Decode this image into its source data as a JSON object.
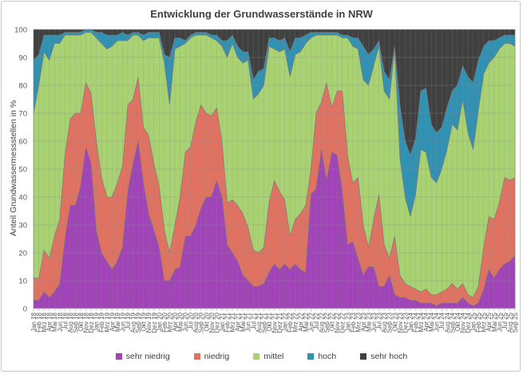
{
  "chart_data": {
    "type": "area",
    "stacked": true,
    "title": "Entwicklung der Grundwasserstände in NRW",
    "xlabel": "",
    "ylabel": "Anteil Grundwassermessstellen in %",
    "ylim": [
      0,
      100
    ],
    "yticks": [
      0,
      10,
      20,
      30,
      40,
      50,
      60,
      70,
      80,
      90,
      100
    ],
    "grid": true,
    "legend_position": "bottom",
    "categories": [
      "Jan 18",
      "Feb 18",
      "Mrz 18",
      "Apr 18",
      "Mai 18",
      "Jun 18",
      "Jul 18",
      "Aug 18",
      "Sep 18",
      "Okt 18",
      "Nov 18",
      "Dez 18",
      "Jan 19",
      "Feb 19",
      "Mrz 19",
      "Apr 19",
      "Mai 19",
      "Jun 19",
      "Jul 19",
      "Aug 19",
      "Sep 19",
      "Okt 19",
      "Nov 19",
      "Dez 19",
      "Jan 20",
      "Feb 20",
      "Mrz 20",
      "Apr 20",
      "Mai 20",
      "Jun 20",
      "Jul 20",
      "Aug 20",
      "Sep 20",
      "Okt 20",
      "Nov 20",
      "Dez 20",
      "Jan 21",
      "Feb 21",
      "Mrz 21",
      "Apr 21",
      "Mai 21",
      "Jun 21",
      "Jul 21",
      "Aug 21",
      "Sep 21",
      "Okt 21",
      "Nov 21",
      "Dez 21",
      "Jan 22",
      "Feb 22",
      "Mrz 22",
      "Apr 22",
      "Mai 22",
      "Jun 22",
      "Jul 22",
      "Aug 22",
      "Sep 22",
      "Okt 22",
      "Nov 22",
      "Dez 22",
      "Jan 23",
      "Feb 23",
      "Mrz 23",
      "Apr 23",
      "Mai 23",
      "Jun 23",
      "Jul 23",
      "Aug 23",
      "Sep 23",
      "Okt 23",
      "Nov 23",
      "Dez 23",
      "Jan 24",
      "Feb 24",
      "Mrz 24",
      "Apr 24",
      "Mai 24",
      "Jun 24",
      "Jul 24",
      "Aug 24",
      "Sep 24",
      "Okt 24",
      "Nov 24",
      "Dez 24",
      "Jan 25",
      "Feb 25",
      "Mrz 25",
      "Apr 25",
      "Mai 25",
      "Jun 25",
      "Jul 25",
      "Aug 25",
      "Sep 25"
    ],
    "series": [
      {
        "name": "sehr niedrig",
        "color": "#a044b8",
        "values": [
          3,
          3,
          6,
          4,
          6,
          9,
          25,
          37,
          37,
          44,
          58,
          52,
          28,
          20,
          17,
          14,
          17,
          22,
          42,
          52,
          60,
          45,
          34,
          28,
          22,
          10,
          10,
          14,
          15,
          26,
          26,
          30,
          36,
          40,
          40,
          46,
          40,
          23,
          20,
          17,
          12,
          10,
          8,
          8,
          9,
          13,
          16,
          14,
          16,
          14,
          16,
          14,
          13,
          41,
          43,
          57,
          46,
          56,
          55,
          42,
          23,
          24,
          18,
          12,
          15,
          15,
          8,
          8,
          12,
          5,
          4,
          4,
          3,
          3,
          2,
          2,
          2,
          1,
          2,
          2,
          2,
          2,
          4,
          2,
          1,
          2,
          7,
          14,
          11,
          14,
          16,
          17,
          19
        ]
      },
      {
        "name": "niedrig",
        "color": "#e07262",
        "values": [
          8,
          8,
          15,
          14,
          20,
          23,
          30,
          31,
          33,
          26,
          23,
          25,
          32,
          27,
          23,
          26,
          28,
          29,
          31,
          23,
          23,
          20,
          28,
          24,
          22,
          18,
          10,
          16,
          25,
          30,
          32,
          37,
          37,
          30,
          29,
          26,
          20,
          15,
          19,
          20,
          22,
          19,
          13,
          12,
          13,
          25,
          30,
          28,
          23,
          12,
          16,
          20,
          24,
          9,
          27,
          17,
          35,
          16,
          23,
          36,
          32,
          21,
          29,
          18,
          7,
          17,
          33,
          15,
          6,
          21,
          8,
          5,
          5,
          4,
          4,
          5,
          3,
          4,
          4,
          5,
          7,
          5,
          5,
          3,
          3,
          6,
          15,
          19,
          21,
          24,
          31,
          29,
          28
        ]
      },
      {
        "name": "mittel",
        "color": "#a9d372",
        "values": [
          59,
          69,
          71,
          71,
          69,
          63,
          43,
          30,
          28,
          28,
          18,
          22,
          37,
          48,
          53,
          54,
          51,
          45,
          23,
          23,
          15,
          31,
          35,
          45,
          53,
          60,
          53,
          63,
          54,
          39,
          39,
          31,
          25,
          28,
          28,
          24,
          34,
          52,
          56,
          53,
          54,
          60,
          54,
          57,
          58,
          56,
          47,
          50,
          54,
          57,
          59,
          58,
          58,
          47,
          28,
          24,
          17,
          26,
          20,
          19,
          42,
          49,
          46,
          52,
          58,
          55,
          53,
          55,
          57,
          67,
          42,
          31,
          25,
          34,
          51,
          49,
          42,
          40,
          44,
          50,
          57,
          57,
          66,
          58,
          53,
          63,
          62,
          55,
          58,
          55,
          48,
          49,
          47
        ]
      },
      {
        "name": "hoch",
        "color": "#3191b2",
        "values": [
          19,
          11,
          6,
          9,
          3,
          3,
          1,
          1,
          1,
          1,
          1,
          1,
          2,
          4,
          5,
          4,
          2,
          3,
          2,
          1,
          1,
          2,
          2,
          2,
          2,
          3,
          17,
          4,
          3,
          1,
          1,
          1,
          1,
          1,
          1,
          2,
          2,
          6,
          3,
          4,
          4,
          3,
          7,
          8,
          6,
          3,
          4,
          4,
          4,
          9,
          6,
          5,
          3,
          2,
          1,
          1,
          1,
          1,
          1,
          1,
          1,
          3,
          4,
          12,
          11,
          6,
          2,
          7,
          7,
          1,
          19,
          20,
          22,
          20,
          21,
          23,
          19,
          18,
          15,
          15,
          12,
          16,
          12,
          20,
          24,
          18,
          10,
          8,
          6,
          4,
          3,
          3,
          4
        ]
      },
      {
        "name": "sehr hoch",
        "color": "#404040",
        "values": [
          11,
          9,
          2,
          2,
          2,
          2,
          1,
          1,
          1,
          1,
          0,
          0,
          1,
          1,
          2,
          2,
          2,
          1,
          2,
          1,
          1,
          2,
          1,
          1,
          1,
          9,
          10,
          3,
          3,
          4,
          2,
          1,
          1,
          1,
          2,
          2,
          4,
          4,
          2,
          6,
          8,
          8,
          18,
          15,
          14,
          3,
          3,
          4,
          3,
          8,
          3,
          3,
          2,
          1,
          1,
          1,
          1,
          1,
          1,
          2,
          2,
          3,
          3,
          6,
          9,
          7,
          4,
          15,
          18,
          6,
          27,
          40,
          45,
          39,
          22,
          21,
          34,
          37,
          35,
          28,
          22,
          20,
          13,
          17,
          19,
          11,
          6,
          4,
          4,
          3,
          2,
          2,
          2
        ]
      }
    ]
  }
}
